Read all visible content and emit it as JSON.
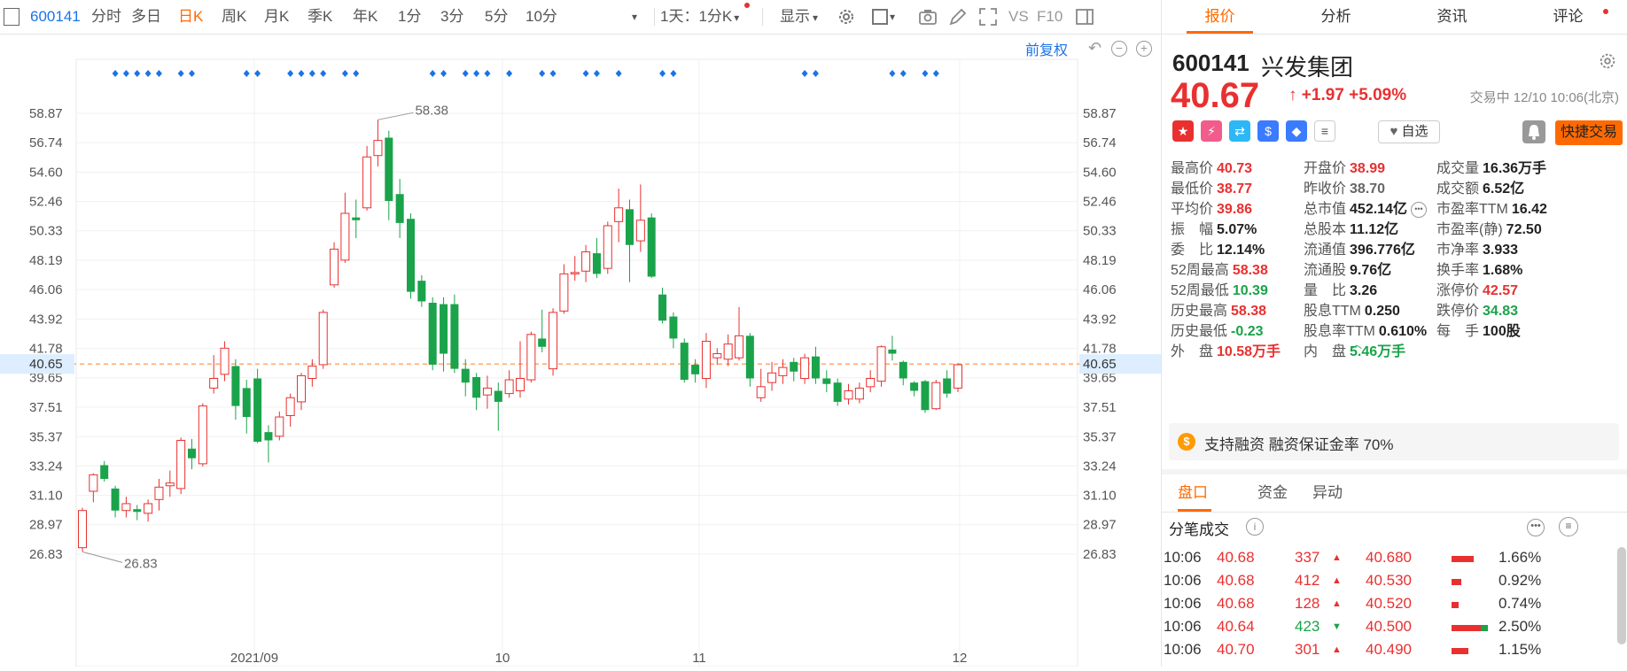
{
  "toolbar": {
    "code": "600141",
    "items": [
      "分时",
      "多日",
      "日K",
      "周K",
      "月K",
      "季K",
      "年K",
      "1分",
      "3分",
      "5分",
      "10分"
    ],
    "active": "日K",
    "period_select": "1天：1分K",
    "display_label": "显示",
    "vs_label": "VS",
    "f10_label": "F10"
  },
  "chart": {
    "adjust_label": "前复权",
    "ticks_left": [
      "58.87",
      "56.74",
      "54.60",
      "52.46",
      "50.33",
      "48.19",
      "46.06",
      "43.92",
      "41.78",
      "39.65",
      "37.51",
      "35.37",
      "33.24",
      "31.10",
      "28.97",
      "26.83"
    ],
    "ticks_right": [
      "58.87",
      "56.74",
      "54.60",
      "52.46",
      "50.33",
      "48.19",
      "46.06",
      "43.92",
      "41.78",
      "40.65",
      "39.65",
      "37.51",
      "35.37",
      "33.24",
      "31.10",
      "28.97",
      "26.83"
    ],
    "current_price": "40.65",
    "high_label": "58.38",
    "low_label": "26.83",
    "x_labels": [
      "2021/09",
      "10",
      "11",
      "12"
    ]
  },
  "chart_data": {
    "type": "candlestick",
    "ylim": [
      26.83,
      58.87
    ],
    "current_line": 40.65,
    "candles": [
      {
        "o": 27.3,
        "c": 30.0,
        "h": 30.2,
        "l": 27.0
      },
      {
        "o": 31.4,
        "c": 32.6,
        "h": 32.7,
        "l": 30.6
      },
      {
        "o": 33.3,
        "c": 32.3,
        "h": 33.6,
        "l": 32.1
      },
      {
        "o": 31.6,
        "c": 30.0,
        "h": 31.8,
        "l": 29.5
      },
      {
        "o": 30.0,
        "c": 30.5,
        "h": 31.0,
        "l": 29.5
      },
      {
        "o": 30.1,
        "c": 29.9,
        "h": 30.4,
        "l": 29.3
      },
      {
        "o": 29.8,
        "c": 30.5,
        "h": 30.8,
        "l": 29.2
      },
      {
        "o": 30.8,
        "c": 31.7,
        "h": 32.3,
        "l": 30.0
      },
      {
        "o": 31.8,
        "c": 32.0,
        "h": 32.9,
        "l": 31.0
      },
      {
        "o": 31.6,
        "c": 35.1,
        "h": 35.3,
        "l": 31.2
      },
      {
        "o": 34.5,
        "c": 33.8,
        "h": 35.2,
        "l": 33.0
      },
      {
        "o": 33.4,
        "c": 37.6,
        "h": 37.8,
        "l": 33.2
      },
      {
        "o": 38.9,
        "c": 39.6,
        "h": 41.3,
        "l": 38.5
      },
      {
        "o": 39.9,
        "c": 41.8,
        "h": 42.3,
        "l": 39.4
      },
      {
        "o": 40.5,
        "c": 37.6,
        "h": 41.0,
        "l": 36.6
      },
      {
        "o": 38.9,
        "c": 36.8,
        "h": 39.5,
        "l": 35.6
      },
      {
        "o": 39.6,
        "c": 35.0,
        "h": 40.3,
        "l": 34.9
      },
      {
        "o": 35.7,
        "c": 35.1,
        "h": 36.2,
        "l": 33.5
      },
      {
        "o": 35.4,
        "c": 36.8,
        "h": 37.2,
        "l": 35.1
      },
      {
        "o": 36.9,
        "c": 38.2,
        "h": 38.5,
        "l": 36.1
      },
      {
        "o": 37.9,
        "c": 39.8,
        "h": 40.0,
        "l": 37.3
      },
      {
        "o": 39.6,
        "c": 40.5,
        "h": 41.0,
        "l": 39.0
      },
      {
        "o": 40.6,
        "c": 44.4,
        "h": 44.6,
        "l": 40.3
      },
      {
        "o": 46.4,
        "c": 49.0,
        "h": 49.5,
        "l": 46.2
      },
      {
        "o": 48.2,
        "c": 51.6,
        "h": 53.1,
        "l": 48.0
      },
      {
        "o": 51.3,
        "c": 51.1,
        "h": 52.6,
        "l": 49.8
      },
      {
        "o": 52.0,
        "c": 55.7,
        "h": 56.5,
        "l": 51.8
      },
      {
        "o": 55.8,
        "c": 56.9,
        "h": 58.4,
        "l": 55.0
      },
      {
        "o": 57.1,
        "c": 52.5,
        "h": 57.6,
        "l": 51.1
      },
      {
        "o": 53.0,
        "c": 50.9,
        "h": 54.1,
        "l": 49.8
      },
      {
        "o": 51.2,
        "c": 45.9,
        "h": 51.6,
        "l": 45.4
      },
      {
        "o": 46.7,
        "c": 45.2,
        "h": 47.1,
        "l": 44.8
      },
      {
        "o": 45.1,
        "c": 40.6,
        "h": 45.5,
        "l": 40.2
      },
      {
        "o": 45.0,
        "c": 41.4,
        "h": 45.5,
        "l": 40.1
      },
      {
        "o": 45.0,
        "c": 40.3,
        "h": 45.7,
        "l": 40.0
      },
      {
        "o": 40.3,
        "c": 39.3,
        "h": 41.0,
        "l": 38.3
      },
      {
        "o": 39.7,
        "c": 38.2,
        "h": 40.0,
        "l": 37.3
      },
      {
        "o": 38.4,
        "c": 38.9,
        "h": 39.8,
        "l": 37.4
      },
      {
        "o": 38.7,
        "c": 37.9,
        "h": 39.3,
        "l": 35.8
      },
      {
        "o": 38.5,
        "c": 39.5,
        "h": 40.2,
        "l": 38.2
      },
      {
        "o": 38.7,
        "c": 39.6,
        "h": 42.3,
        "l": 38.2
      },
      {
        "o": 39.5,
        "c": 42.8,
        "h": 43.0,
        "l": 39.3
      },
      {
        "o": 42.5,
        "c": 41.9,
        "h": 44.6,
        "l": 41.5
      },
      {
        "o": 40.3,
        "c": 44.4,
        "h": 44.7,
        "l": 39.8
      },
      {
        "o": 44.5,
        "c": 47.2,
        "h": 47.9,
        "l": 44.3
      },
      {
        "o": 47.2,
        "c": 47.3,
        "h": 48.5,
        "l": 46.7
      },
      {
        "o": 47.4,
        "c": 48.8,
        "h": 49.3,
        "l": 46.6
      },
      {
        "o": 48.7,
        "c": 47.2,
        "h": 49.8,
        "l": 46.9
      },
      {
        "o": 47.6,
        "c": 50.7,
        "h": 51.0,
        "l": 47.2
      },
      {
        "o": 51.0,
        "c": 52.0,
        "h": 53.4,
        "l": 49.5
      },
      {
        "o": 51.9,
        "c": 49.3,
        "h": 52.6,
        "l": 46.6
      },
      {
        "o": 49.6,
        "c": 51.1,
        "h": 53.7,
        "l": 48.8
      },
      {
        "o": 51.3,
        "c": 47.0,
        "h": 51.6,
        "l": 46.9
      },
      {
        "o": 45.7,
        "c": 43.8,
        "h": 46.2,
        "l": 43.6
      },
      {
        "o": 44.1,
        "c": 42.5,
        "h": 44.4,
        "l": 41.8
      },
      {
        "o": 42.2,
        "c": 39.5,
        "h": 42.5,
        "l": 39.3
      },
      {
        "o": 40.6,
        "c": 39.9,
        "h": 41.0,
        "l": 39.3
      },
      {
        "o": 39.6,
        "c": 42.3,
        "h": 42.9,
        "l": 38.9
      },
      {
        "o": 41.1,
        "c": 41.4,
        "h": 41.8,
        "l": 40.6
      },
      {
        "o": 41.0,
        "c": 42.1,
        "h": 42.8,
        "l": 40.5
      },
      {
        "o": 41.1,
        "c": 42.7,
        "h": 44.8,
        "l": 40.9
      },
      {
        "o": 42.7,
        "c": 39.6,
        "h": 42.9,
        "l": 39.0
      },
      {
        "o": 38.2,
        "c": 39.0,
        "h": 40.3,
        "l": 37.9
      },
      {
        "o": 39.3,
        "c": 40.0,
        "h": 40.8,
        "l": 38.7
      },
      {
        "o": 39.8,
        "c": 40.4,
        "h": 41.0,
        "l": 39.2
      },
      {
        "o": 40.8,
        "c": 40.1,
        "h": 41.1,
        "l": 39.4
      },
      {
        "o": 39.6,
        "c": 41.1,
        "h": 41.4,
        "l": 39.2
      },
      {
        "o": 41.2,
        "c": 39.6,
        "h": 41.9,
        "l": 39.2
      },
      {
        "o": 39.6,
        "c": 39.2,
        "h": 40.2,
        "l": 38.6
      },
      {
        "o": 39.3,
        "c": 37.9,
        "h": 39.6,
        "l": 37.6
      },
      {
        "o": 38.1,
        "c": 38.7,
        "h": 39.2,
        "l": 37.7
      },
      {
        "o": 38.1,
        "c": 38.9,
        "h": 39.3,
        "l": 37.8
      },
      {
        "o": 39.0,
        "c": 39.6,
        "h": 40.2,
        "l": 38.6
      },
      {
        "o": 39.4,
        "c": 41.9,
        "h": 42.0,
        "l": 39.0
      },
      {
        "o": 41.7,
        "c": 41.4,
        "h": 42.7,
        "l": 40.9
      },
      {
        "o": 40.8,
        "c": 39.6,
        "h": 40.9,
        "l": 39.1
      },
      {
        "o": 39.3,
        "c": 38.7,
        "h": 39.4,
        "l": 38.3
      },
      {
        "o": 39.4,
        "c": 37.3,
        "h": 39.5,
        "l": 37.1
      },
      {
        "o": 37.4,
        "c": 39.3,
        "h": 39.5,
        "l": 37.3
      },
      {
        "o": 39.6,
        "c": 38.5,
        "h": 40.2,
        "l": 38.2
      },
      {
        "o": 38.9,
        "c": 40.6,
        "h": 40.7,
        "l": 38.6
      }
    ],
    "markers": [
      3,
      4,
      5,
      6,
      7,
      9,
      10,
      15,
      16,
      19,
      20,
      21,
      22,
      24,
      25,
      32,
      33,
      35,
      36,
      37,
      39,
      42,
      43,
      46,
      47,
      49,
      53,
      54,
      66,
      67,
      74,
      75,
      77,
      78
    ]
  },
  "panel": {
    "tabs": [
      "报价",
      "分析",
      "资讯",
      "评论"
    ],
    "active_tab": "报价",
    "code": "600141",
    "name": "兴发集团",
    "price": "40.67",
    "change": "↑ +1.97 +5.09%",
    "status": "交易中 12/10 10:06(北京)",
    "watch_label": "自选",
    "trade_label": "快捷交易",
    "stats": [
      [
        {
          "l": "最高价",
          "v": "40.73",
          "c": "red"
        },
        {
          "l": "开盘价",
          "v": "38.99",
          "c": "red"
        },
        {
          "l": "成交量",
          "v": "16.36万手",
          "c": ""
        }
      ],
      [
        {
          "l": "最低价",
          "v": "38.77",
          "c": "red"
        },
        {
          "l": "昨收价",
          "v": "38.70",
          "c": "gray"
        },
        {
          "l": "成交额",
          "v": "6.52亿",
          "c": ""
        }
      ],
      [
        {
          "l": "平均价",
          "v": "39.86",
          "c": "red"
        },
        {
          "l": "总市值",
          "v": "452.14亿",
          "c": ""
        },
        {
          "l": "市盈率TTM",
          "v": "16.42",
          "c": ""
        }
      ],
      [
        {
          "l": "振　幅",
          "v": "5.07%",
          "c": ""
        },
        {
          "l": "总股本",
          "v": "11.12亿",
          "c": ""
        },
        {
          "l": "市盈率(静)",
          "v": "72.50",
          "c": ""
        }
      ],
      [
        {
          "l": "委　比",
          "v": "12.14%",
          "c": ""
        },
        {
          "l": "流通值",
          "v": "396.776亿",
          "c": ""
        },
        {
          "l": "市净率",
          "v": "3.933",
          "c": ""
        }
      ],
      [
        {
          "l": "52周最高",
          "v": "58.38",
          "c": "red"
        },
        {
          "l": "流通股",
          "v": "9.76亿",
          "c": ""
        },
        {
          "l": "换手率",
          "v": "1.68%",
          "c": ""
        }
      ],
      [
        {
          "l": "52周最低",
          "v": "10.39",
          "c": "green"
        },
        {
          "l": "量　比",
          "v": "3.26",
          "c": ""
        },
        {
          "l": "涨停价",
          "v": "42.57",
          "c": "red"
        }
      ],
      [
        {
          "l": "历史最高",
          "v": "58.38",
          "c": "red"
        },
        {
          "l": "股息TTM",
          "v": "0.250",
          "c": ""
        },
        {
          "l": "跌停价",
          "v": "34.83",
          "c": "green"
        }
      ],
      [
        {
          "l": "历史最低",
          "v": "-0.23",
          "c": "green"
        },
        {
          "l": "股息率TTM",
          "v": "0.610%",
          "c": ""
        },
        {
          "l": "每　手",
          "v": "100股",
          "c": ""
        }
      ],
      [
        {
          "l": "外　盘",
          "v": "10.58万手",
          "c": "red"
        },
        {
          "l": "内　盘",
          "v": "5.46万手",
          "c": "green"
        },
        {
          "l": "",
          "v": "",
          "c": ""
        }
      ]
    ],
    "margin_text": "支持融资 融资保证金率 70%",
    "subtabs": [
      "盘口",
      "资金",
      "异动"
    ],
    "active_subtab": "盘口",
    "tick_title": "分笔成交",
    "ticks": [
      {
        "time": "10:06",
        "price": "40.68",
        "vol": "337",
        "dir": "up",
        "lvl": "40.680",
        "pct": "1.66%",
        "ratio": 0.66
      },
      {
        "time": "10:06",
        "price": "40.68",
        "vol": "412",
        "dir": "up",
        "lvl": "40.530",
        "pct": "0.92%",
        "ratio": 0.3
      },
      {
        "time": "10:06",
        "price": "40.68",
        "vol": "128",
        "dir": "up",
        "lvl": "40.520",
        "pct": "0.74%",
        "ratio": 0.22
      },
      {
        "time": "10:06",
        "price": "40.64",
        "vol": "423",
        "dir": "down",
        "lvl": "40.500",
        "pct": "2.50%",
        "ratio": 0.88
      },
      {
        "time": "10:06",
        "price": "40.70",
        "vol": "301",
        "dir": "up",
        "lvl": "40.490",
        "pct": "1.15%",
        "ratio": 0.5
      }
    ]
  }
}
